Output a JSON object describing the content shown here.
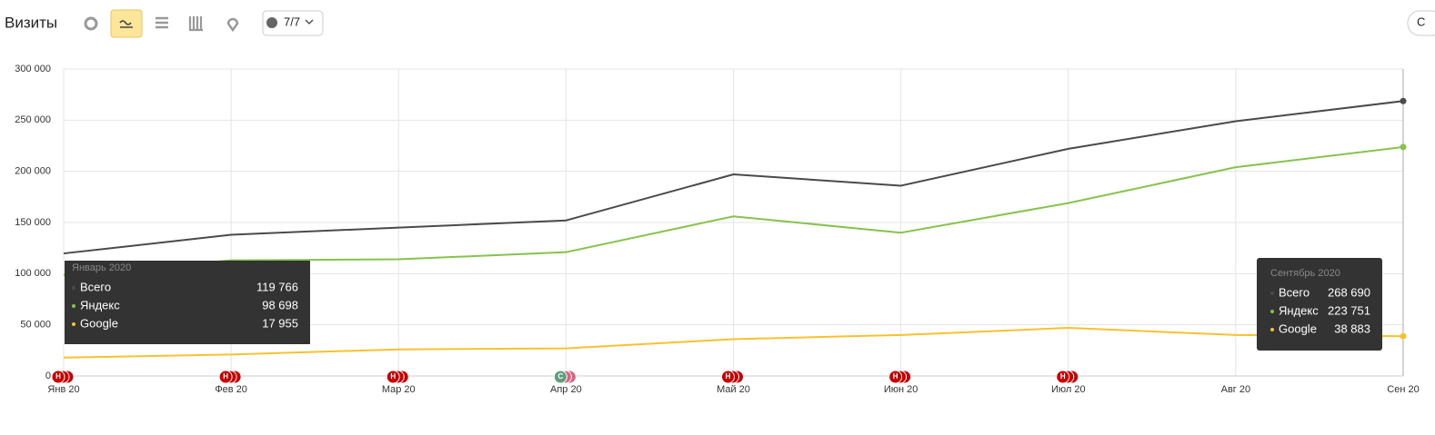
{
  "ui": {
    "title": "Визиты",
    "filter": "7/7",
    "button": "С"
  },
  "chart_data": {
    "type": "line",
    "categories": [
      "Янв 20",
      "Фев 20",
      "Мар 20",
      "Апр 20",
      "Май 20",
      "Июн 20",
      "Июл 20",
      "Авг 20",
      "Сен 20"
    ],
    "series": [
      {
        "name": "Всего",
        "color": "#4a4a4a",
        "values": [
          119766,
          138000,
          145000,
          152000,
          197000,
          186000,
          222000,
          249000,
          268690
        ],
        "value_labels": [
          "119 766",
          null,
          null,
          null,
          null,
          null,
          null,
          null,
          "268 690"
        ]
      },
      {
        "name": "Яндекс",
        "color": "#86c34a",
        "values": [
          98698,
          113000,
          114000,
          121000,
          156000,
          140000,
          169000,
          204000,
          223751
        ],
        "value_labels": [
          "98 698",
          null,
          null,
          null,
          null,
          null,
          null,
          null,
          "223 751"
        ]
      },
      {
        "name": "Google",
        "color": "#f8c22e",
        "values": [
          17955,
          21000,
          26000,
          27000,
          36000,
          40000,
          47000,
          40000,
          38883
        ],
        "value_labels": [
          "17 955",
          null,
          null,
          null,
          null,
          null,
          null,
          null,
          "38 883"
        ]
      }
    ],
    "tooltip_titles": [
      "Январь 2020",
      null,
      null,
      null,
      null,
      null,
      null,
      null,
      "Сентябрь 2020"
    ],
    "event_markers": [
      "Н",
      "Н",
      "Н",
      "С",
      "Н",
      "Н",
      "Н",
      null,
      null
    ],
    "ylim": [
      0,
      300000
    ],
    "yticks": [
      0,
      {
        "value": 50000,
        "label": "50 000"
      },
      {
        "value": 100000,
        "label": "100 000"
      },
      {
        "value": 150000,
        "label": "150 000"
      },
      {
        "value": 200000,
        "label": "200 000"
      },
      {
        "value": 250000,
        "label": "250 000"
      },
      {
        "value": 300000,
        "label": "300 000"
      }
    ],
    "grid": true
  }
}
